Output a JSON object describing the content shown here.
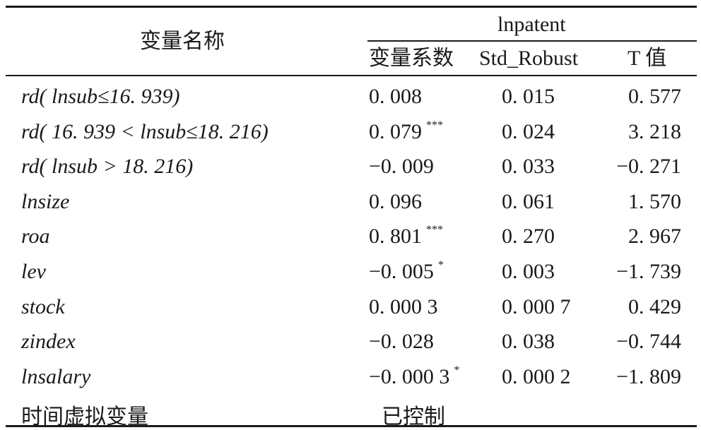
{
  "header": {
    "variable_col": "变量名称",
    "group": "lnpatent",
    "coef_col": "变量系数",
    "std_col": "Std_Robust",
    "t_col": "T 值"
  },
  "rows": [
    {
      "label": "rd( lnsub≤16. 939)",
      "coef": "0. 008",
      "coef_sig": "",
      "std": "0. 015",
      "t": "0. 577"
    },
    {
      "label": "rd( 16. 939 < lnsub≤18. 216)",
      "coef": "0. 079",
      "coef_sig": "***",
      "std": "0. 024",
      "t": "3. 218"
    },
    {
      "label": "rd( lnsub > 18. 216)",
      "coef": "−0. 009",
      "coef_sig": "",
      "std": "0. 033",
      "t": "−0. 271"
    },
    {
      "label": "lnsize",
      "coef": "0. 096",
      "coef_sig": "",
      "std": "0. 061",
      "t": "1. 570"
    },
    {
      "label": "roa",
      "coef": "0. 801",
      "coef_sig": "***",
      "std": "0. 270",
      "t": "2. 967"
    },
    {
      "label": "lev",
      "coef": "−0. 005",
      "coef_sig": "*",
      "std": "0. 003",
      "t": "−1. 739"
    },
    {
      "label": "stock",
      "coef": "0. 000 3",
      "coef_sig": "",
      "std": "0. 000 7",
      "t": "0. 429"
    },
    {
      "label": "zindex",
      "coef": "−0. 028",
      "coef_sig": "",
      "std": "0. 038",
      "t": "−0. 744"
    },
    {
      "label": "lnsalary",
      "coef": "−0. 000 3",
      "coef_sig": "*",
      "std": "0. 000 2",
      "t": "−1. 809"
    }
  ],
  "footer_row": {
    "label": "时间虚拟变量",
    "value": "已控制"
  }
}
